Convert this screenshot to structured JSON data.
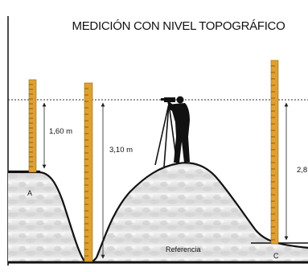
{
  "title": "MEDICIÓN CON NIVEL TOPOGRÁFICO",
  "measures": {
    "a": "1,60 m",
    "b": "3,10 m",
    "c": "2,8"
  },
  "points": {
    "a": "A",
    "c": "C"
  },
  "reference_label": "Referencia",
  "colors": {
    "staff": "#e0a030",
    "ground": "#111111",
    "hill_fill": "#dcdcdc",
    "sightline": "#333333"
  }
}
